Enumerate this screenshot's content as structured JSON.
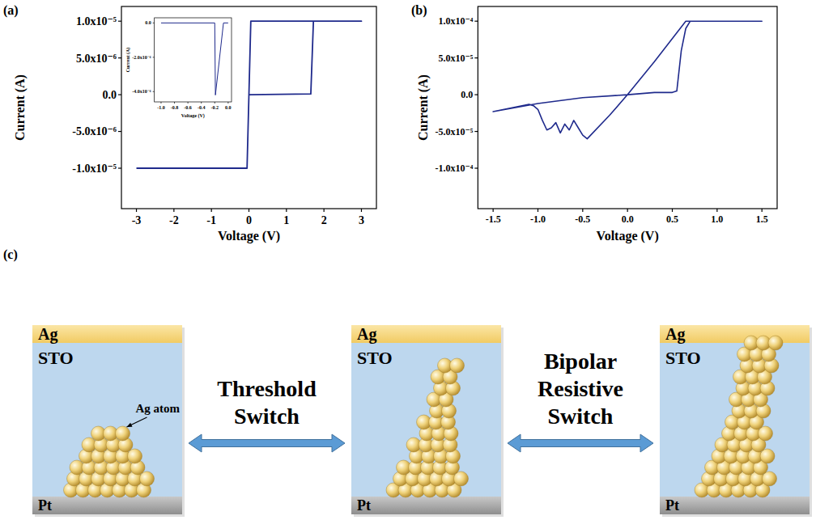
{
  "panel_labels": [
    "(a)",
    "(b)",
    "(c)"
  ],
  "chart_data": [
    {
      "type": "line",
      "x_label": "Voltage (V)",
      "y_label": "Current (A)",
      "color": "#1f2a8c",
      "grid": false,
      "x": [
        0,
        1.65,
        1.72,
        3,
        0.05,
        0,
        -0.05,
        -3
      ],
      "values": [
        0,
        1e-07,
        1e-05,
        1e-05,
        1e-05,
        0,
        -1e-05,
        -1e-05
      ],
      "xlim": [
        -3.4,
        3.4
      ],
      "xticks": [
        -3,
        -2,
        -1,
        0,
        1,
        2,
        3
      ],
      "ylim": [
        -1.55e-05,
        1.2e-05
      ],
      "yticks": [
        {
          "value": 1e-05,
          "label": "1.0x10⁻⁵"
        },
        {
          "value": 5e-06,
          "label": "5.0x10⁻⁶"
        },
        {
          "value": 0,
          "label": "0.0"
        },
        {
          "value": -5e-06,
          "label": "-5.0x10⁻⁶"
        },
        {
          "value": -1e-05,
          "label": "-1.0x10⁻⁵"
        }
      ]
    },
    {
      "type": "line",
      "x_label": "Voltage (V)",
      "y_label": "Current (A)",
      "color": "#1f2a8c",
      "grid": false,
      "x": [
        0,
        -0.07,
        -0.19,
        -0.2,
        -1.0
      ],
      "values": [
        0,
        0,
        -4.2e-06,
        0,
        0
      ],
      "xlim": [
        -1.1,
        0.05
      ],
      "xticks": [
        {
          "value": -1,
          "label": "-1.0"
        },
        -0.8,
        -0.6,
        -0.4,
        -0.2,
        {
          "value": 0,
          "label": "0.0"
        }
      ],
      "ylim": [
        -4.6e-06,
        3e-07
      ],
      "yticks": [
        {
          "value": 0,
          "label": "0.0"
        },
        {
          "value": -2e-06,
          "label": "-2.0x10⁻⁶"
        },
        {
          "value": -4e-06,
          "label": "-4.0x10⁻⁶"
        }
      ]
    },
    {
      "type": "line",
      "x_label": "Voltage (V)",
      "y_label": "Current (A)",
      "color": "#1f2a8c",
      "grid": false,
      "x": [
        0,
        0.3,
        0.5,
        0.55,
        0.6,
        0.65,
        0.7,
        1.5,
        0.65,
        0.3,
        0,
        -0.2,
        -0.45,
        -0.5,
        -0.55,
        -0.6,
        -0.65,
        -0.7,
        -0.75,
        -0.8,
        -0.85,
        -0.9,
        -0.95,
        -1.0,
        -1.05,
        -1.1,
        -1.5,
        -1.0,
        -0.5,
        0
      ],
      "values": [
        0,
        3e-06,
        3e-06,
        5e-06,
        6e-05,
        9e-05,
        0.0001,
        0.0001,
        0.0001,
        4.5e-05,
        0,
        -2.8e-05,
        -6e-05,
        -5.5e-05,
        -4.5e-05,
        -3.5e-05,
        -4.8e-05,
        -4e-05,
        -5.2e-05,
        -3.8e-05,
        -4.5e-05,
        -4.8e-05,
        -3.5e-05,
        -2e-05,
        -1.5e-05,
        -1.3e-05,
        -2.3e-05,
        -1.2e-05,
        -4e-06,
        0
      ],
      "xlim": [
        -1.67,
        1.67
      ],
      "xticks": [
        -1.5,
        {
          "value": -1,
          "label": "-1.0"
        },
        -0.5,
        {
          "value": 0,
          "label": "0.0"
        },
        0.5,
        {
          "value": 1,
          "label": "1.0"
        },
        1.5
      ],
      "ylim": [
        -0.000155,
        0.00012
      ],
      "yticks": [
        {
          "value": 0.0001,
          "label": "1.0x10⁻⁴"
        },
        {
          "value": 5e-05,
          "label": "5.0x10⁻⁵"
        },
        {
          "value": 0,
          "label": "0.0"
        },
        {
          "value": -5e-05,
          "label": "-5.0x10⁻⁵"
        },
        {
          "value": -0.0001,
          "label": "-1.0x10⁻⁴"
        }
      ]
    }
  ],
  "diagram": {
    "boxes": [
      {
        "top": "Ag",
        "middle": "STO",
        "bottom": "Pt"
      },
      {
        "top": "Ag",
        "middle": "STO",
        "bottom": "Pt"
      },
      {
        "top": "Ag",
        "middle": "STO",
        "bottom": "Pt"
      }
    ],
    "atom_label": "Ag atom",
    "transitions": [
      "Threshold Switch",
      "Bipolar Resistive Switch"
    ]
  }
}
